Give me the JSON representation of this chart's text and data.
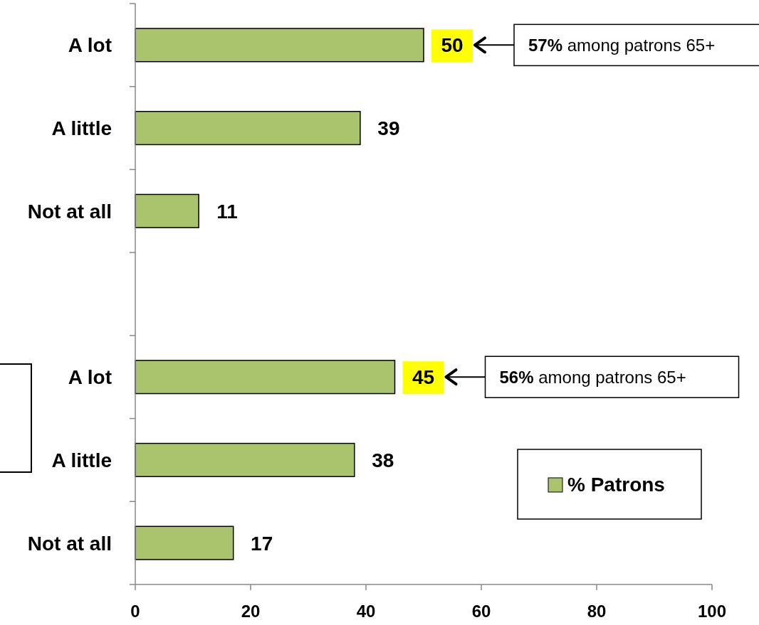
{
  "chart_data": {
    "type": "bar",
    "orientation": "horizontal",
    "categories": [
      "A lot",
      "A little",
      "Not at all",
      null,
      "A lot",
      "A little",
      "Not at all"
    ],
    "series": [
      {
        "name": "% Patrons",
        "color": "#a9c46c",
        "values": [
          50,
          39,
          11,
          null,
          45,
          38,
          17
        ]
      }
    ],
    "xlim": [
      0,
      100
    ],
    "xticks": [
      0,
      20,
      40,
      60,
      80,
      100
    ],
    "data_labels": true,
    "grid": false,
    "legend": "bottom right",
    "annotations": [
      "57% among patrons 65+",
      "56% among patrons 65+"
    ]
  }
}
